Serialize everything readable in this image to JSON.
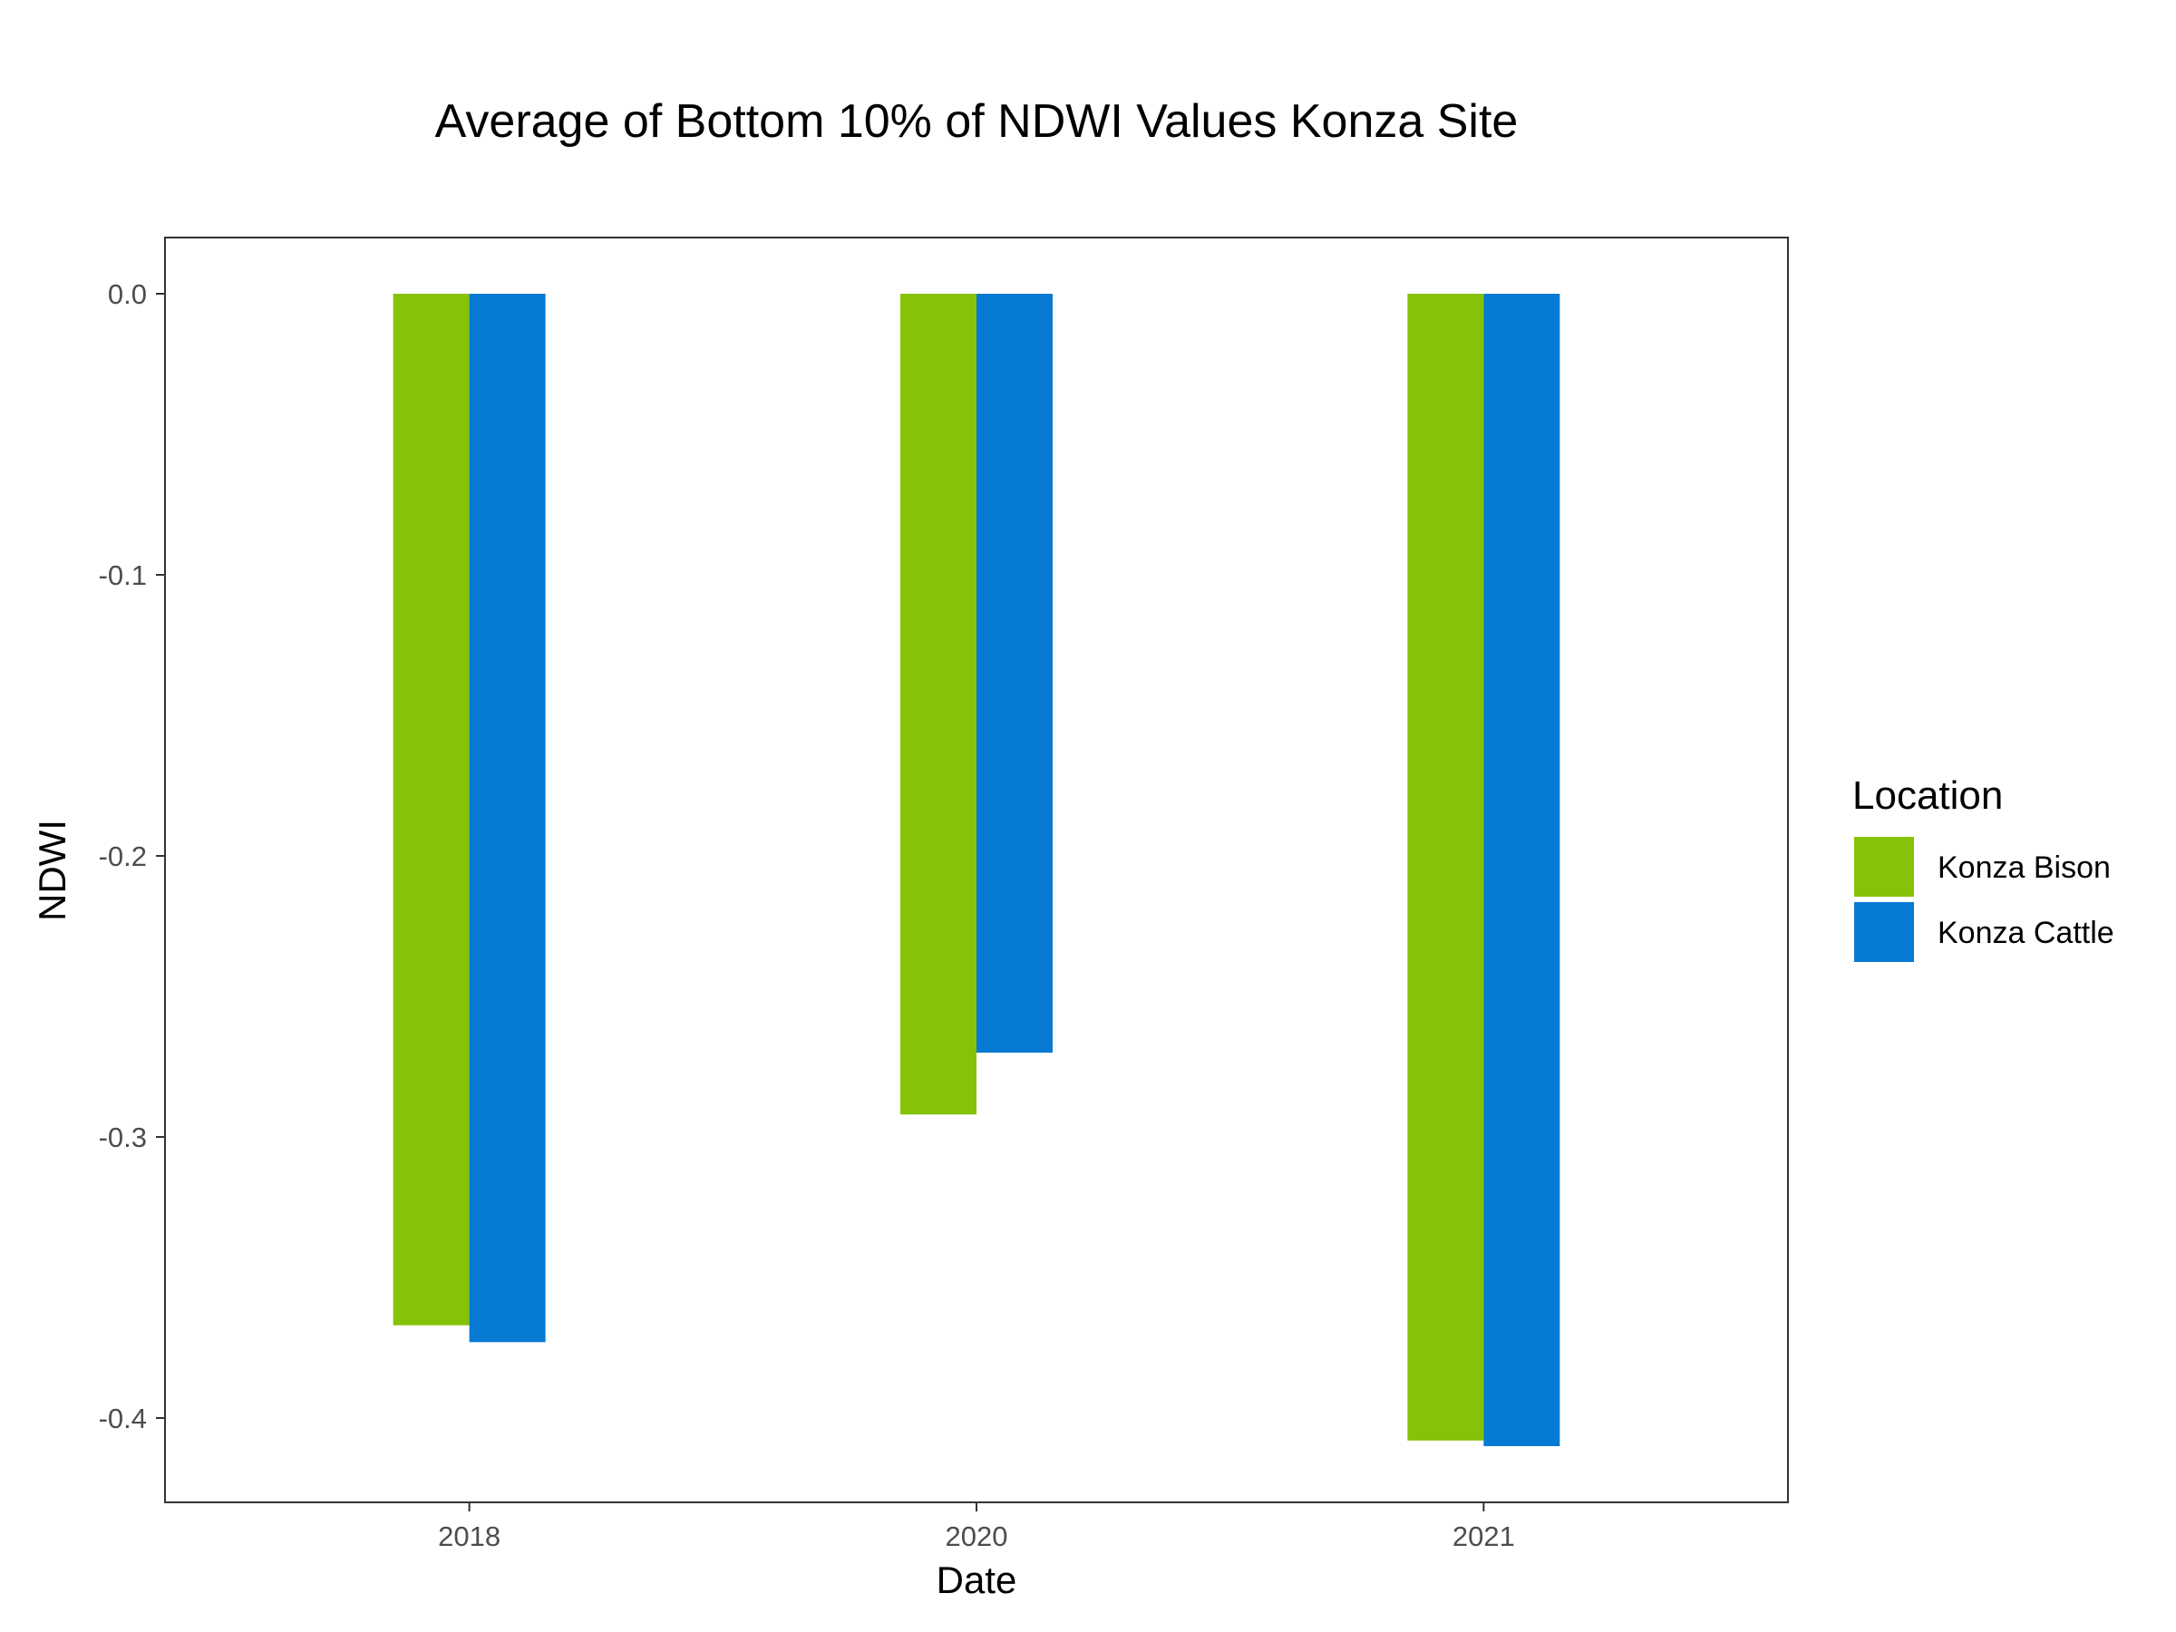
{
  "chart_data": {
    "type": "bar",
    "title": "Average of Bottom 10% of NDWI Values Konza Site",
    "xlabel": "Date",
    "ylabel": "NDWI",
    "categories": [
      "2018",
      "2020",
      "2021"
    ],
    "series": [
      {
        "name": "Konza Bison",
        "color": "#86c207",
        "values": [
          -0.367,
          -0.292,
          -0.408
        ]
      },
      {
        "name": "Konza Cattle",
        "color": "#077ad3",
        "values": [
          -0.373,
          -0.27,
          -0.41
        ]
      }
    ],
    "ylim": [
      -0.43,
      0.02
    ],
    "yticks": [
      0.0,
      -0.1,
      -0.2,
      -0.3,
      -0.4
    ],
    "ytick_labels": [
      "0.0",
      "-0.1",
      "-0.2",
      "-0.3",
      "-0.4"
    ],
    "legend": {
      "title": "Location",
      "position": "right"
    },
    "grid": false
  }
}
